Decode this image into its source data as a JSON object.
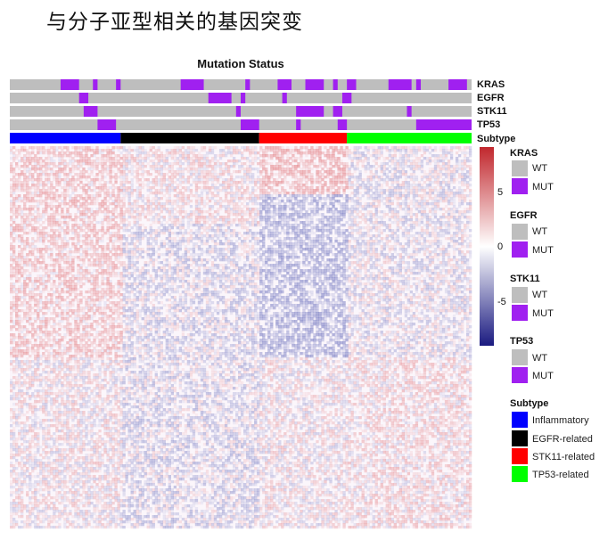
{
  "slide_title": "与分子亚型相关的基因突变",
  "chart_data": {
    "type": "heatmap",
    "title": "Mutation Status",
    "n_samples": 100,
    "annotation_tracks": [
      {
        "name": "KRAS",
        "mutated_ranges": [
          [
            11,
            15
          ],
          [
            18,
            19
          ],
          [
            23,
            24
          ],
          [
            37,
            42
          ],
          [
            51,
            52
          ],
          [
            58,
            61
          ],
          [
            64,
            68
          ],
          [
            70,
            71
          ],
          [
            73,
            75
          ],
          [
            82,
            87
          ],
          [
            88,
            89
          ],
          [
            95,
            99
          ]
        ]
      },
      {
        "name": "EGFR",
        "mutated_ranges": [
          [
            15,
            17
          ],
          [
            43,
            48
          ],
          [
            50,
            51
          ],
          [
            59,
            60
          ],
          [
            72,
            74
          ]
        ]
      },
      {
        "name": "STK11",
        "mutated_ranges": [
          [
            16,
            19
          ],
          [
            49,
            50
          ],
          [
            62,
            68
          ],
          [
            70,
            72
          ],
          [
            86,
            87
          ]
        ]
      },
      {
        "name": "TP53",
        "mutated_ranges": [
          [
            19,
            23
          ],
          [
            50,
            54
          ],
          [
            62,
            63
          ],
          [
            71,
            73
          ],
          [
            88,
            100
          ]
        ]
      }
    ],
    "subtype_track": {
      "name": "Subtype",
      "segments": [
        {
          "label": "Inflammatory",
          "from": 0,
          "to": 24
        },
        {
          "label": "EGFR-related",
          "from": 24,
          "to": 54
        },
        {
          "label": "STK11-related",
          "from": 54,
          "to": 73
        },
        {
          "label": "TP53-related",
          "from": 73,
          "to": 100
        }
      ]
    },
    "color_scale": {
      "ticks": [
        5,
        0,
        -5
      ],
      "min": -7,
      "max": 7,
      "low_color": "#1a1a80",
      "mid_color": "#ffffff",
      "high_color": "#c1272d"
    },
    "legend": [
      {
        "title": "KRAS",
        "items": [
          {
            "label": "WT",
            "color": "#bebebe"
          },
          {
            "label": "MUT",
            "color": "#a020f0"
          }
        ]
      },
      {
        "title": "EGFR",
        "items": [
          {
            "label": "WT",
            "color": "#bebebe"
          },
          {
            "label": "MUT",
            "color": "#a020f0"
          }
        ]
      },
      {
        "title": "STK11",
        "items": [
          {
            "label": "WT",
            "color": "#bebebe"
          },
          {
            "label": "MUT",
            "color": "#a020f0"
          }
        ]
      },
      {
        "title": "TP53",
        "items": [
          {
            "label": "WT",
            "color": "#bebebe"
          },
          {
            "label": "MUT",
            "color": "#a020f0"
          }
        ]
      },
      {
        "title": "Subtype",
        "items": [
          {
            "label": "Inflammatory",
            "color": "#0000ff"
          },
          {
            "label": "EGFR-related",
            "color": "#000000"
          },
          {
            "label": "STK11-related",
            "color": "#ff0000"
          },
          {
            "label": "TP53-related",
            "color": "#00ff00"
          }
        ]
      }
    ],
    "legend_placement": "right"
  },
  "colors": {
    "wt": "#bebebe",
    "mut": "#a020f0"
  }
}
